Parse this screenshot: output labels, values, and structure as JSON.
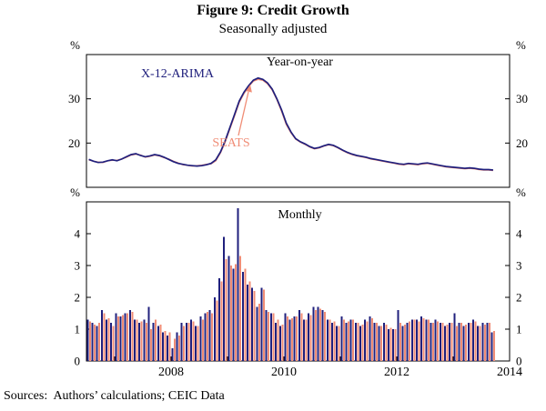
{
  "figure": {
    "title": "Figure 9: Credit Growth",
    "subtitle": "Seasonally adjusted",
    "source": "Sources:  Authors’ calculations; CEIC Data"
  },
  "colors": {
    "x12": "#20207d",
    "seats": "#f08d76",
    "axis": "#000000"
  },
  "x_axis": {
    "domain": [
      2006.5,
      2014
    ],
    "start": {
      "year": 2006,
      "month": 7
    },
    "tick_years": [
      2007,
      2008,
      2009,
      2010,
      2011,
      2012,
      2013,
      2014
    ],
    "labeled_years": [
      2008,
      2010,
      2012,
      2014
    ]
  },
  "chart_data": [
    {
      "type": "line",
      "panel": "top",
      "panel_label": "Year-on-year",
      "unit": "%",
      "ylim": [
        10,
        40
      ],
      "yticks": [
        20,
        30
      ],
      "series": [
        {
          "name": "X-12-ARIMA",
          "color": "#20207d",
          "values": [
            16.3,
            15.9,
            15.6,
            15.7,
            16.0,
            16.2,
            16.0,
            16.4,
            16.9,
            17.4,
            17.6,
            17.2,
            16.9,
            17.1,
            17.4,
            17.2,
            16.8,
            16.3,
            15.8,
            15.4,
            15.2,
            15.0,
            14.9,
            14.8,
            14.9,
            15.1,
            15.4,
            16.2,
            18.0,
            20.5,
            23.5,
            26.5,
            29.5,
            31.5,
            33.0,
            34.2,
            34.7,
            34.4,
            33.6,
            32.2,
            30.0,
            27.5,
            24.5,
            22.5,
            21.0,
            20.3,
            19.8,
            19.2,
            18.8,
            19.0,
            19.4,
            19.7,
            19.5,
            19.0,
            18.4,
            17.9,
            17.5,
            17.2,
            17.0,
            16.8,
            16.5,
            16.3,
            16.1,
            15.9,
            15.7,
            15.5,
            15.3,
            15.2,
            15.4,
            15.3,
            15.2,
            15.4,
            15.5,
            15.3,
            15.1,
            14.9,
            14.7,
            14.6,
            14.5,
            14.4,
            14.3,
            14.4,
            14.3,
            14.1,
            14.0,
            14.0,
            13.9
          ]
        },
        {
          "name": "SEATS",
          "color": "#f08d76",
          "values": [
            16.2,
            15.9,
            15.7,
            15.6,
            16.0,
            16.1,
            16.1,
            16.4,
            16.8,
            17.3,
            17.5,
            17.3,
            16.8,
            17.0,
            17.3,
            17.1,
            16.7,
            16.4,
            15.9,
            15.5,
            15.1,
            15.0,
            14.8,
            14.9,
            15.0,
            15.2,
            15.3,
            16.0,
            17.8,
            20.2,
            23.2,
            26.2,
            29.2,
            31.2,
            32.8,
            34.0,
            34.4,
            34.2,
            33.4,
            32.0,
            29.8,
            27.2,
            24.2,
            22.3,
            20.9,
            20.2,
            19.7,
            19.1,
            18.7,
            18.9,
            19.3,
            19.6,
            19.4,
            18.9,
            18.3,
            17.8,
            17.4,
            17.1,
            16.9,
            16.7,
            16.4,
            16.2,
            16.0,
            15.8,
            15.6,
            15.4,
            15.2,
            15.1,
            15.3,
            15.2,
            15.1,
            15.3,
            15.4,
            15.2,
            15.0,
            14.8,
            14.6,
            14.5,
            14.4,
            14.3,
            14.2,
            14.3,
            14.2,
            14.0,
            13.9,
            13.9,
            13.8
          ]
        }
      ],
      "annotations": [
        {
          "text": "X-12-ARIMA",
          "color": "#20207d"
        },
        {
          "text": "SEATS",
          "color": "#f08d76",
          "arrow": true
        }
      ]
    },
    {
      "type": "bar",
      "panel": "bottom",
      "panel_label": "Monthly",
      "unit": "%",
      "ylim": [
        0,
        5
      ],
      "yticks": [
        0,
        1,
        2,
        3,
        4
      ],
      "series": [
        {
          "name": "X-12-ARIMA",
          "color": "#20207d",
          "values": [
            1.3,
            1.2,
            1.1,
            1.6,
            1.3,
            1.2,
            1.5,
            1.4,
            1.5,
            1.6,
            1.3,
            1.2,
            1.3,
            1.7,
            1.2,
            1.1,
            0.9,
            0.8,
            0.4,
            0.9,
            1.2,
            1.2,
            1.3,
            1.1,
            1.4,
            1.5,
            1.6,
            2.0,
            2.6,
            3.9,
            3.3,
            2.9,
            4.8,
            2.8,
            2.4,
            2.3,
            1.7,
            2.3,
            1.6,
            1.5,
            1.2,
            1.1,
            1.5,
            1.3,
            1.4,
            1.6,
            1.3,
            1.5,
            1.7,
            1.7,
            1.6,
            1.3,
            1.2,
            1.1,
            1.4,
            1.2,
            1.3,
            1.2,
            1.1,
            1.3,
            1.4,
            1.2,
            1.1,
            1.2,
            1.0,
            1.0,
            1.6,
            1.1,
            1.2,
            1.3,
            1.3,
            1.4,
            1.3,
            1.2,
            1.3,
            1.2,
            1.1,
            1.2,
            1.5,
            1.2,
            1.1,
            1.2,
            1.3,
            1.1,
            1.2,
            1.2,
            0.9
          ]
        },
        {
          "name": "SEATS",
          "color": "#f08d76",
          "values": [
            1.25,
            1.15,
            1.2,
            1.5,
            1.35,
            1.1,
            1.4,
            1.45,
            1.5,
            1.55,
            1.3,
            1.25,
            1.2,
            1.0,
            1.3,
            1.15,
            0.95,
            0.9,
            0.7,
            0.8,
            1.1,
            1.2,
            1.25,
            1.1,
            1.3,
            1.55,
            1.5,
            1.9,
            2.5,
            3.2,
            3.0,
            3.05,
            3.3,
            2.9,
            2.5,
            2.2,
            1.8,
            2.25,
            1.55,
            1.5,
            1.3,
            1.15,
            1.4,
            1.35,
            1.4,
            1.5,
            1.3,
            1.45,
            1.6,
            1.65,
            1.55,
            1.3,
            1.25,
            1.1,
            1.3,
            1.25,
            1.3,
            1.2,
            1.15,
            1.25,
            1.35,
            1.2,
            1.1,
            1.15,
            1.05,
            1.0,
            1.2,
            1.15,
            1.25,
            1.3,
            1.25,
            1.35,
            1.3,
            1.2,
            1.25,
            1.2,
            1.15,
            1.2,
            1.1,
            1.2,
            1.15,
            1.2,
            1.25,
            1.1,
            1.15,
            1.2,
            0.95
          ]
        }
      ]
    }
  ]
}
